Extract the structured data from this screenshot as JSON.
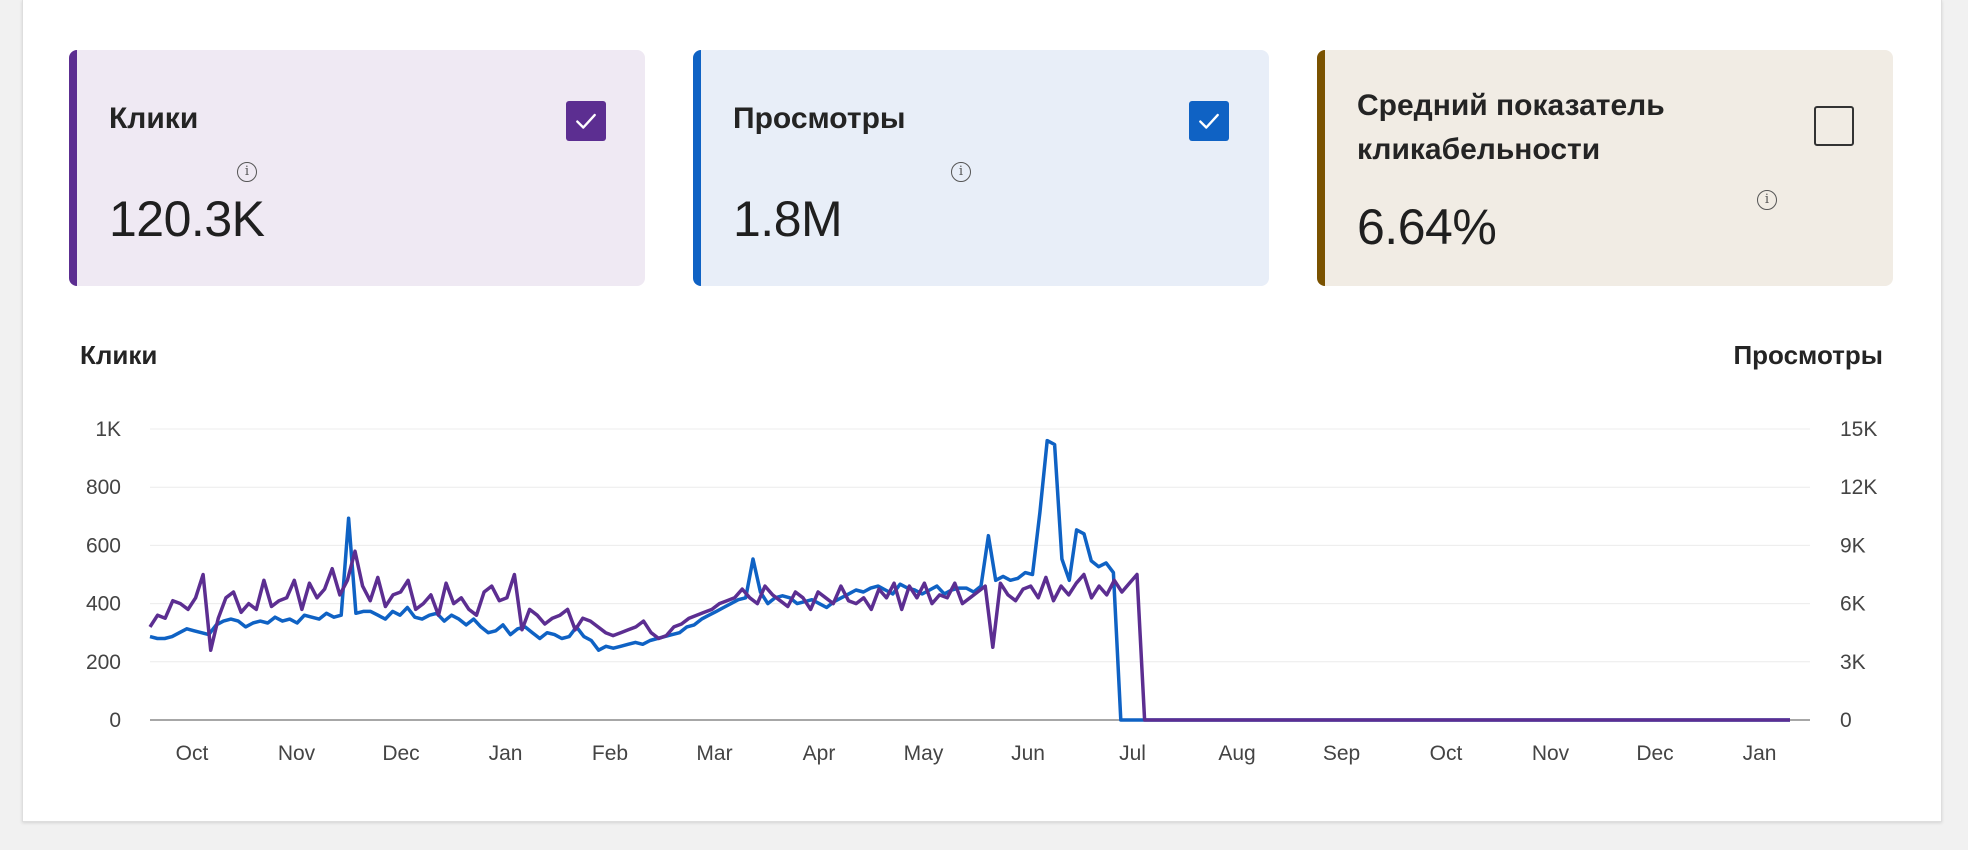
{
  "cards": [
    {
      "title": "Клики",
      "value": "120.3K",
      "checked": true,
      "color": "#5c2e91",
      "bg": "#efe9f3"
    },
    {
      "title": "Просмотры",
      "value": "1.8M",
      "checked": true,
      "color": "#0f62c4",
      "bg": "#e8eef8"
    },
    {
      "title": "Средний показатель кликабельности",
      "value": "6.64%",
      "checked": false,
      "color": "#7a5200",
      "bg": "#f1ece4"
    }
  ],
  "chart_data": {
    "type": "line",
    "ylabel": "Клики",
    "y2label": "Просмотры",
    "ylim": [
      0,
      1000
    ],
    "y2lim": [
      0,
      15000
    ],
    "yticks": [
      "1K",
      "800",
      "600",
      "400",
      "200",
      "0"
    ],
    "y2ticks": [
      "15K",
      "12K",
      "9K",
      "6K",
      "3K",
      "0"
    ],
    "xticks": [
      "Oct",
      "Nov",
      "Dec",
      "Jan",
      "Feb",
      "Mar",
      "Apr",
      "May",
      "Jun",
      "Jul",
      "Aug",
      "Sep",
      "Oct",
      "Nov",
      "Dec",
      "Jan"
    ],
    "grid": true,
    "series": [
      {
        "name": "Клики",
        "axis": "left",
        "color": "#5c2e91",
        "values": [
          320,
          360,
          350,
          410,
          400,
          380,
          420,
          500,
          240,
          350,
          420,
          440,
          370,
          400,
          380,
          480,
          390,
          410,
          420,
          480,
          380,
          470,
          420,
          450,
          520,
          430,
          480,
          580,
          460,
          410,
          490,
          390,
          430,
          440,
          480,
          380,
          400,
          430,
          360,
          470,
          400,
          420,
          380,
          360,
          440,
          460,
          410,
          420,
          500,
          310,
          380,
          360,
          330,
          350,
          360,
          380,
          310,
          350,
          340,
          320,
          300,
          290,
          300,
          310,
          320,
          340,
          300,
          280,
          290,
          320,
          330,
          350,
          360,
          370,
          380,
          400,
          410,
          420,
          450,
          420,
          400,
          460,
          430,
          410,
          390,
          440,
          420,
          380,
          440,
          420,
          400,
          460,
          410,
          400,
          420,
          380,
          450,
          420,
          470,
          380,
          460,
          420,
          470,
          400,
          430,
          420,
          470,
          400,
          420,
          440,
          460,
          250,
          470,
          430,
          410,
          450,
          460,
          420,
          490,
          410,
          460,
          430,
          470,
          500,
          420,
          460,
          430,
          480,
          440,
          470,
          500,
          0,
          0,
          0,
          0,
          0,
          0,
          0,
          0,
          0,
          0,
          0,
          0,
          0,
          0,
          0,
          0,
          0,
          0,
          0,
          0,
          0,
          0,
          0,
          0,
          0,
          0,
          0,
          0,
          0,
          0,
          0,
          0,
          0,
          0,
          0,
          0,
          0,
          0,
          0,
          0,
          0,
          0,
          0,
          0,
          0,
          0,
          0,
          0,
          0,
          0,
          0,
          0,
          0,
          0,
          0,
          0,
          0,
          0,
          0,
          0,
          0,
          0,
          0,
          0,
          0,
          0,
          0,
          0,
          0,
          0,
          0,
          0,
          0,
          0,
          0,
          0,
          0,
          0,
          0,
          0,
          0,
          0,
          0,
          0,
          0,
          0
        ]
      },
      {
        "name": "Просмотры",
        "axis": "right",
        "color": "#0f62c4",
        "values": [
          4300,
          4200,
          4200,
          4300,
          4500,
          4700,
          4600,
          4500,
          4400,
          4900,
          5100,
          5200,
          5100,
          4800,
          5000,
          5100,
          5000,
          5300,
          5100,
          5200,
          5000,
          5400,
          5300,
          5200,
          5500,
          5300,
          5400,
          10400,
          5500,
          5600,
          5600,
          5400,
          5200,
          5600,
          5400,
          5800,
          5300,
          5200,
          5400,
          5500,
          5100,
          5400,
          5200,
          4900,
          5200,
          4800,
          4500,
          4600,
          4900,
          4400,
          4700,
          4800,
          4500,
          4200,
          4500,
          4400,
          4200,
          4300,
          4800,
          4300,
          4100,
          3600,
          3800,
          3700,
          3800,
          3900,
          4000,
          3900,
          4100,
          4200,
          4300,
          4400,
          4500,
          4800,
          4900,
          5200,
          5400,
          5600,
          5800,
          6000,
          6200,
          6300,
          8300,
          6600,
          6000,
          6300,
          6400,
          6300,
          6000,
          6100,
          6200,
          6000,
          5800,
          6100,
          6300,
          6500,
          6700,
          6600,
          6800,
          6900,
          6700,
          6500,
          7000,
          6800,
          6700,
          6500,
          6700,
          6900,
          6500,
          6700,
          6800,
          6800,
          6600,
          6900,
          9500,
          7200,
          7400,
          7200,
          7300,
          7600,
          7500,
          10700,
          14400,
          14200,
          8300,
          7200,
          9800,
          9600,
          8200,
          7900,
          8100,
          7600,
          0,
          0,
          0,
          0,
          0,
          0,
          0,
          0,
          0,
          0,
          0,
          0,
          0,
          0,
          0,
          0,
          0,
          0,
          0,
          0,
          0,
          0,
          0,
          0,
          0,
          0,
          0,
          0,
          0,
          0,
          0,
          0,
          0,
          0,
          0,
          0,
          0,
          0,
          0,
          0,
          0,
          0,
          0,
          0,
          0,
          0,
          0,
          0,
          0,
          0,
          0,
          0,
          0,
          0,
          0,
          0,
          0,
          0,
          0,
          0,
          0,
          0,
          0,
          0,
          0,
          0,
          0,
          0,
          0,
          0,
          0,
          0,
          0,
          0,
          0,
          0,
          0,
          0,
          0,
          0,
          0,
          0,
          0,
          0,
          0,
          0,
          0,
          0,
          0,
          0,
          0,
          0
        ]
      }
    ]
  }
}
